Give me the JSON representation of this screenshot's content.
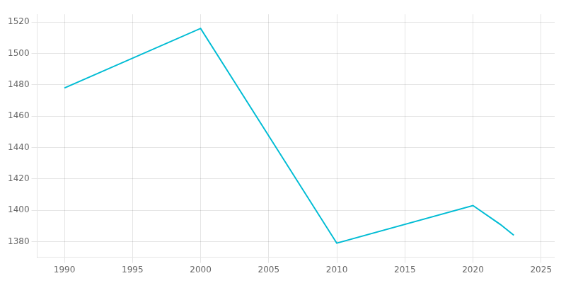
{
  "chart_data": {
    "type": "line",
    "x": [
      1990,
      2000,
      2010,
      2020,
      2022,
      2023
    ],
    "values": [
      1478,
      1516,
      1379,
      1403,
      1391,
      1384
    ],
    "color": "#00BCD4",
    "xlim": [
      1988,
      2026
    ],
    "ylim": [
      1370,
      1525
    ],
    "xticks": [
      1990,
      1995,
      2000,
      2005,
      2010,
      2015,
      2020,
      2025
    ],
    "yticks": [
      1380,
      1400,
      1420,
      1440,
      1460,
      1480,
      1500,
      1520
    ],
    "grid": true
  }
}
